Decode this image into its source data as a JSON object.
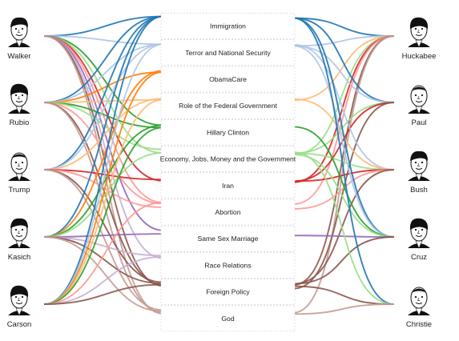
{
  "candidates_left": [
    {
      "name": "Walker",
      "icon": "walker-portrait-icon"
    },
    {
      "name": "Rubio",
      "icon": "rubio-portrait-icon"
    },
    {
      "name": "Trump",
      "icon": "trump-portrait-icon"
    },
    {
      "name": "Kasich",
      "icon": "kasich-portrait-icon"
    },
    {
      "name": "Carson",
      "icon": "carson-portrait-icon"
    }
  ],
  "candidates_right": [
    {
      "name": "Huckabee",
      "icon": "huckabee-portrait-icon"
    },
    {
      "name": "Paul",
      "icon": "paul-portrait-icon"
    },
    {
      "name": "Bush",
      "icon": "bush-portrait-icon"
    },
    {
      "name": "Cruz",
      "icon": "cruz-portrait-icon"
    },
    {
      "name": "Christie",
      "icon": "christie-portrait-icon"
    }
  ],
  "topics": [
    {
      "label": "Immigration",
      "color": "#1f77b4"
    },
    {
      "label": "Terror and National Security",
      "color": "#aec7e8"
    },
    {
      "label": "ObamaCare",
      "color": "#ff7f0e"
    },
    {
      "label": "Role of the Federal Government",
      "color": "#ffbb78"
    },
    {
      "label": "Hillary Clinton",
      "color": "#2ca02c"
    },
    {
      "label": "Economy, Jobs, Money and the Government",
      "color": "#98df8a"
    },
    {
      "label": "Iran",
      "color": "#d62728"
    },
    {
      "label": "Abortion",
      "color": "#ff9896"
    },
    {
      "label": "Same Sex Marriage",
      "color": "#9467bd"
    },
    {
      "label": "Race Relations",
      "color": "#c5b0d5"
    },
    {
      "label": "Foreign Policy",
      "color": "#8c564b"
    },
    {
      "label": "God",
      "color": "#c49c94"
    }
  ],
  "links_left": [
    {
      "candidate": 0,
      "topics": [
        0,
        1,
        4,
        5,
        6,
        7,
        8,
        9,
        10,
        11
      ]
    },
    {
      "candidate": 1,
      "topics": [
        0,
        1,
        2,
        3,
        4,
        5,
        7,
        10,
        11
      ]
    },
    {
      "candidate": 2,
      "topics": [
        0,
        1,
        3,
        6,
        7,
        10,
        11
      ]
    },
    {
      "candidate": 3,
      "topics": [
        0,
        2,
        4,
        5,
        8,
        9,
        10,
        11
      ]
    },
    {
      "candidate": 4,
      "topics": [
        0,
        1,
        2,
        3,
        4,
        7,
        9,
        10
      ]
    }
  ],
  "links_right": [
    {
      "candidate": 0,
      "topics": [
        0,
        1,
        3,
        5,
        6,
        7,
        10,
        11
      ]
    },
    {
      "candidate": 1,
      "topics": [
        0,
        1,
        5,
        6,
        10
      ]
    },
    {
      "candidate": 2,
      "topics": [
        1,
        3,
        5,
        6,
        7,
        10
      ]
    },
    {
      "candidate": 3,
      "topics": [
        0,
        1,
        4,
        5,
        8,
        10
      ]
    },
    {
      "candidate": 4,
      "topics": [
        0,
        5,
        10,
        11
      ]
    }
  ]
}
